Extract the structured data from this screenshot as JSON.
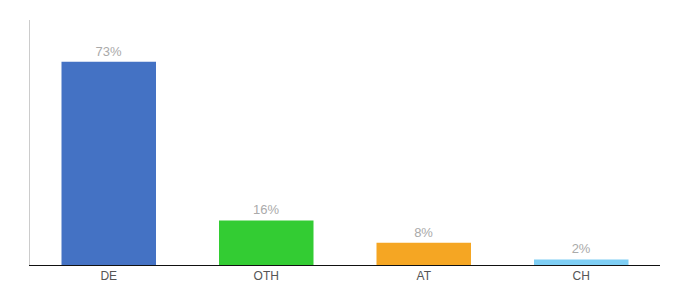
{
  "chart_data": {
    "type": "bar",
    "categories": [
      "DE",
      "OTH",
      "AT",
      "CH"
    ],
    "values": [
      73,
      16,
      8,
      2
    ],
    "value_labels": [
      "73%",
      "16%",
      "8%",
      "2%"
    ],
    "colors": [
      "#4472c4",
      "#33cc33",
      "#f5a623",
      "#7ecef4"
    ],
    "ylim": [
      0,
      88
    ],
    "grid": false,
    "data_labels": true,
    "tick_labels": "x"
  }
}
